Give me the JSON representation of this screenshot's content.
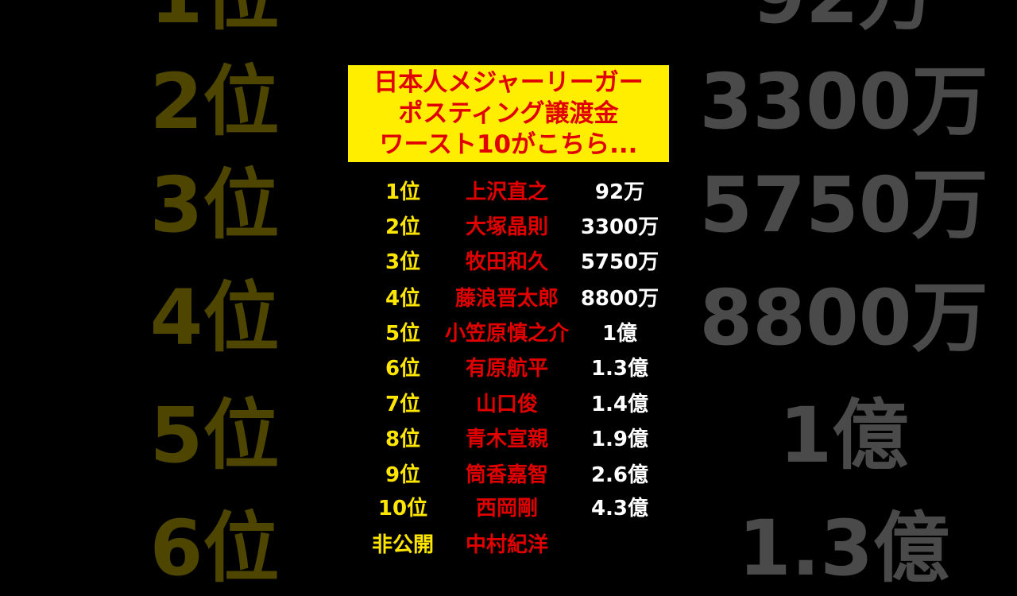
{
  "title": {
    "lines": [
      "日本人メジャーリーガー",
      "ポスティング譲渡金",
      "ワースト10がこちら..."
    ]
  },
  "colors": {
    "rank": "#ffe600",
    "name": "#e00000",
    "amount": "#ffffff",
    "title_bg": "#ffee00",
    "background": "#000000"
  },
  "ranking": [
    {
      "rank": "1位",
      "name": "上沢直之",
      "amount": "92万"
    },
    {
      "rank": "2位",
      "name": "大塚晶則",
      "amount": "3300万"
    },
    {
      "rank": "3位",
      "name": "牧田和久",
      "amount": "5750万"
    },
    {
      "rank": "4位",
      "name": "藤浪晋太郎",
      "amount": "8800万"
    },
    {
      "rank": "5位",
      "name": "小笠原慎之介",
      "amount": "1億"
    },
    {
      "rank": "6位",
      "name": "有原航平",
      "amount": "1.3億"
    },
    {
      "rank": "7位",
      "name": "山口俊",
      "amount": "1.4億"
    },
    {
      "rank": "8位",
      "name": "青木宣親",
      "amount": "1.9億"
    },
    {
      "rank": "9位",
      "name": "筒香嘉智",
      "amount": "2.6億"
    },
    {
      "rank": "10位",
      "name": "西岡剛",
      "amount": "4.3億"
    },
    {
      "rank": "非公開",
      "name": "中村紀洋",
      "amount": ""
    }
  ]
}
